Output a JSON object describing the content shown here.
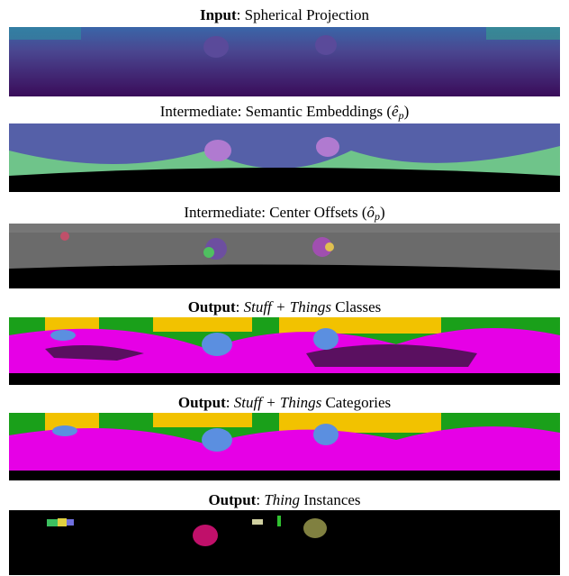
{
  "panels": [
    {
      "caption": [
        {
          "text": "Input",
          "style": "bold"
        },
        {
          "text": ": Spherical Projection",
          "style": "plain"
        }
      ]
    },
    {
      "caption": [
        {
          "text": "Intermediate: Semantic Embeddings (",
          "style": "plain"
        },
        {
          "text": "ê",
          "style": "math"
        },
        {
          "text": "p",
          "style": "sub"
        },
        {
          "text": ")",
          "style": "plain"
        }
      ]
    },
    {
      "caption": [
        {
          "text": "Intermediate: Center Offsets (",
          "style": "plain"
        },
        {
          "text": "ô",
          "style": "math"
        },
        {
          "text": "p",
          "style": "sub"
        },
        {
          "text": ")",
          "style": "plain"
        }
      ]
    },
    {
      "caption": [
        {
          "text": "Output",
          "style": "bold"
        },
        {
          "text": ": ",
          "style": "plain"
        },
        {
          "text": "Stuff + Things",
          "style": "italic"
        },
        {
          "text": " Classes",
          "style": "plain"
        }
      ]
    },
    {
      "caption": [
        {
          "text": "Output",
          "style": "bold"
        },
        {
          "text": ": ",
          "style": "plain"
        },
        {
          "text": "Stuff + Things",
          "style": "italic"
        },
        {
          "text": " Categories",
          "style": "plain"
        }
      ]
    },
    {
      "caption": [
        {
          "text": "Output",
          "style": "bold"
        },
        {
          "text": ": ",
          "style": "plain"
        },
        {
          "text": "Thing",
          "style": "italic"
        },
        {
          "text": " Instances",
          "style": "plain"
        }
      ]
    }
  ]
}
